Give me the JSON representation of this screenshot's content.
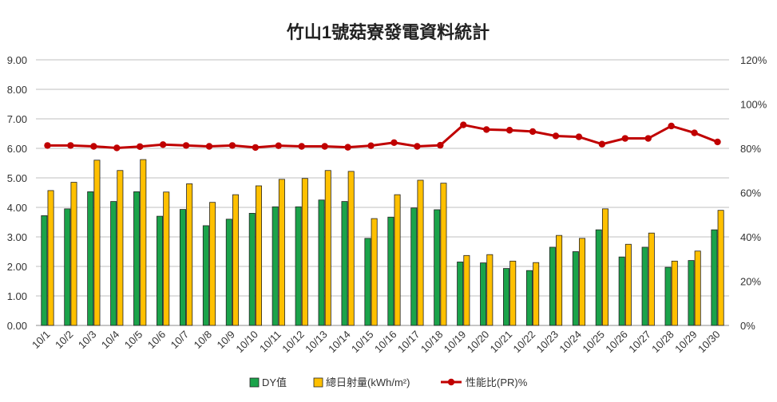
{
  "chart_data": {
    "type": "bar",
    "title": "竹山1號菇寮發電資料統計",
    "categories": [
      "10/1",
      "10/2",
      "10/3",
      "10/4",
      "10/5",
      "10/6",
      "10/7",
      "10/8",
      "10/9",
      "10/10",
      "10/11",
      "10/12",
      "10/13",
      "10/14",
      "10/15",
      "10/16",
      "10/17",
      "10/18",
      "10/19",
      "10/20",
      "10/21",
      "10/22",
      "10/23",
      "10/24",
      "10/25",
      "10/26",
      "10/27",
      "10/28",
      "10/29",
      "10/30"
    ],
    "ylim": [
      0,
      9
    ],
    "y2lim": [
      0,
      120
    ],
    "y_ticks": [
      "0.00",
      "1.00",
      "2.00",
      "3.00",
      "4.00",
      "5.00",
      "6.00",
      "7.00",
      "8.00",
      "9.00"
    ],
    "y2_ticks": [
      "0%",
      "20%",
      "40%",
      "60%",
      "80%",
      "100%",
      "120%"
    ],
    "grid": true,
    "legend_position": "bottom",
    "series": [
      {
        "name": "DY值",
        "type": "bar",
        "axis": "left",
        "color": "#1aa34a",
        "values": [
          3.72,
          3.95,
          4.53,
          4.2,
          4.53,
          3.7,
          3.93,
          3.38,
          3.6,
          3.8,
          4.02,
          4.02,
          4.25,
          4.2,
          2.95,
          3.67,
          3.98,
          3.92,
          2.15,
          2.12,
          1.93,
          1.86,
          2.65,
          2.5,
          3.24,
          2.32,
          2.65,
          1.97,
          2.2,
          3.24
        ]
      },
      {
        "name": "總日射量(kWh/m²)",
        "type": "bar",
        "axis": "left",
        "color": "#ffc000",
        "values": [
          4.57,
          4.85,
          5.6,
          5.25,
          5.62,
          4.52,
          4.8,
          4.17,
          4.43,
          4.73,
          4.95,
          4.98,
          5.25,
          5.22,
          3.62,
          4.43,
          4.92,
          4.82,
          2.37,
          2.4,
          2.18,
          2.13,
          3.05,
          2.95,
          3.95,
          2.75,
          3.13,
          2.18,
          2.52,
          3.9
        ]
      },
      {
        "name": "性能比(PR)%",
        "type": "line",
        "axis": "right",
        "color": "#c00000",
        "values": [
          81.3,
          81.3,
          80.9,
          80.2,
          80.8,
          81.7,
          81.3,
          80.9,
          81.3,
          80.4,
          81.2,
          80.9,
          80.9,
          80.5,
          81.2,
          82.6,
          80.9,
          81.4,
          90.6,
          88.5,
          88.2,
          87.6,
          85.6,
          85.2,
          81.9,
          84.5,
          84.5,
          90.1,
          87.0,
          82.9
        ]
      }
    ]
  }
}
